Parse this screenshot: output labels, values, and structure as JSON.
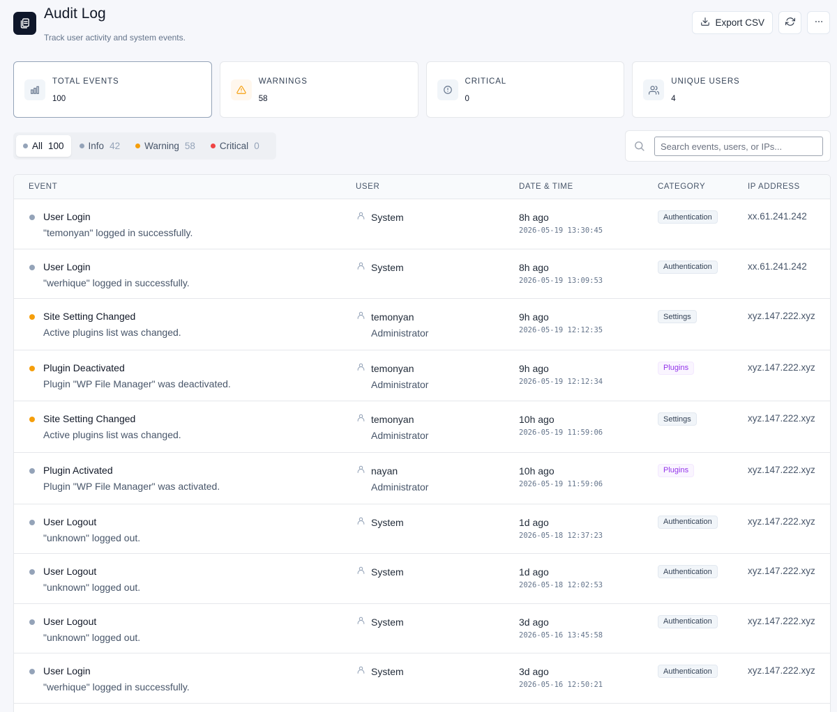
{
  "header": {
    "title": "Audit Log",
    "subtitle": "Track user activity and system events.",
    "export_label": "Export CSV"
  },
  "stats": [
    {
      "label": "TOTAL EVENTS",
      "value": "100",
      "icon": "bar-chart-icon"
    },
    {
      "label": "WARNINGS",
      "value": "58",
      "icon": "warning-triangle-icon"
    },
    {
      "label": "CRITICAL",
      "value": "0",
      "icon": "alert-circle-icon"
    },
    {
      "label": "UNIQUE USERS",
      "value": "4",
      "icon": "users-icon"
    }
  ],
  "filters": [
    {
      "label": "All",
      "count": "100",
      "color": "#94a3b8",
      "active": true
    },
    {
      "label": "Info",
      "count": "42",
      "color": "#94a3b8",
      "active": false
    },
    {
      "label": "Warning",
      "count": "58",
      "color": "#f59e0b",
      "active": false
    },
    {
      "label": "Critical",
      "count": "0",
      "color": "#ef4444",
      "active": false
    }
  ],
  "search": {
    "placeholder": "Search events, users, or IPs..."
  },
  "table": {
    "columns": [
      "EVENT",
      "USER",
      "DATE & TIME",
      "CATEGORY",
      "IP ADDRESS"
    ],
    "rows": [
      {
        "severity_color": "#94a3b8",
        "title": "User Login",
        "description": "\"temonyan\" logged in successfully.",
        "user": "System",
        "role": "",
        "relative": "8h ago",
        "datetime": "2026-05-19 13:30:45",
        "category": "Authentication",
        "category_style": "gray",
        "ip": "xx.61.241.242"
      },
      {
        "severity_color": "#94a3b8",
        "title": "User Login",
        "description": "\"werhique\" logged in successfully.",
        "user": "System",
        "role": "",
        "relative": "8h ago",
        "datetime": "2026-05-19 13:09:53",
        "category": "Authentication",
        "category_style": "gray",
        "ip": "xx.61.241.242"
      },
      {
        "severity_color": "#f59e0b",
        "title": "Site Setting Changed",
        "description": "Active plugins list was changed.",
        "user": "temonyan",
        "role": "Administrator",
        "relative": "9h ago",
        "datetime": "2026-05-19 12:12:35",
        "category": "Settings",
        "category_style": "gray",
        "ip": "xyz.147.222.xyz"
      },
      {
        "severity_color": "#f59e0b",
        "title": "Plugin Deactivated",
        "description": "Plugin \"WP File Manager\" was deactivated.",
        "user": "temonyan",
        "role": "Administrator",
        "relative": "9h ago",
        "datetime": "2026-05-19 12:12:34",
        "category": "Plugins",
        "category_style": "purple",
        "ip": "xyz.147.222.xyz"
      },
      {
        "severity_color": "#f59e0b",
        "title": "Site Setting Changed",
        "description": "Active plugins list was changed.",
        "user": "temonyan",
        "role": "Administrator",
        "relative": "10h ago",
        "datetime": "2026-05-19 11:59:06",
        "category": "Settings",
        "category_style": "gray",
        "ip": "xyz.147.222.xyz"
      },
      {
        "severity_color": "#94a3b8",
        "title": "Plugin Activated",
        "description": "Plugin \"WP File Manager\" was activated.",
        "user": "nayan",
        "role": "Administrator",
        "relative": "10h ago",
        "datetime": "2026-05-19 11:59:06",
        "category": "Plugins",
        "category_style": "purple",
        "ip": "xyz.147.222.xyz"
      },
      {
        "severity_color": "#94a3b8",
        "title": "User Logout",
        "description": "\"unknown\" logged out.",
        "user": "System",
        "role": "",
        "relative": "1d ago",
        "datetime": "2026-05-18 12:37:23",
        "category": "Authentication",
        "category_style": "gray",
        "ip": "xyz.147.222.xyz"
      },
      {
        "severity_color": "#94a3b8",
        "title": "User Logout",
        "description": "\"unknown\" logged out.",
        "user": "System",
        "role": "",
        "relative": "1d ago",
        "datetime": "2026-05-18 12:02:53",
        "category": "Authentication",
        "category_style": "gray",
        "ip": "xyz.147.222.xyz"
      },
      {
        "severity_color": "#94a3b8",
        "title": "User Logout",
        "description": "\"unknown\" logged out.",
        "user": "System",
        "role": "",
        "relative": "3d ago",
        "datetime": "2026-05-16 13:45:58",
        "category": "Authentication",
        "category_style": "gray",
        "ip": "xyz.147.222.xyz"
      },
      {
        "severity_color": "#94a3b8",
        "title": "User Login",
        "description": "\"werhique\" logged in successfully.",
        "user": "System",
        "role": "",
        "relative": "3d ago",
        "datetime": "2026-05-16 12:50:21",
        "category": "Authentication",
        "category_style": "gray",
        "ip": "xyz.147.222.xyz"
      }
    ]
  }
}
